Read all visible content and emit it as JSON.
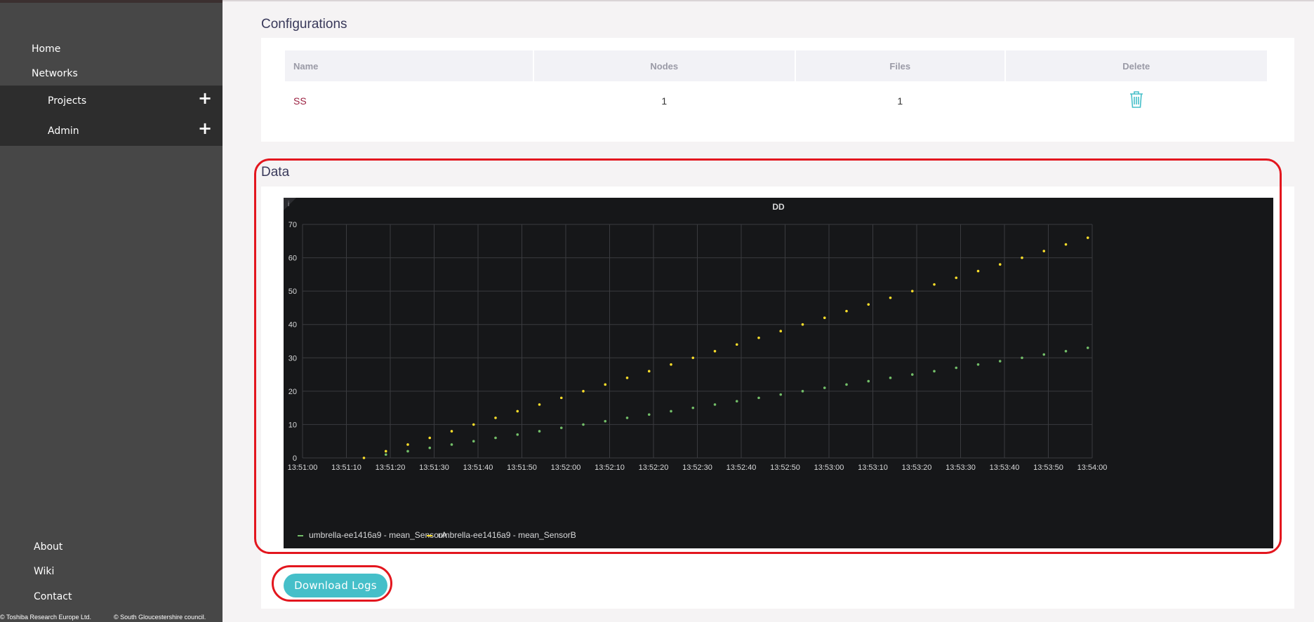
{
  "sidebar": {
    "top_links": [
      "Home",
      "Networks"
    ],
    "sub_items": [
      {
        "label": "Projects",
        "expand": "+"
      },
      {
        "label": "Admin",
        "expand": "+"
      }
    ],
    "bottom_links": [
      "About",
      "Wiki",
      "Contact"
    ],
    "footer": {
      "left": "© Toshiba Research Europe Ltd.",
      "right": "© South Gloucestershire council."
    }
  },
  "configurations": {
    "title": "Configurations",
    "columns": [
      "Name",
      "Nodes",
      "Files",
      "Delete"
    ],
    "rows": [
      {
        "name": "SS",
        "nodes": "1",
        "files": "1",
        "delete_icon": "trash-icon"
      }
    ]
  },
  "data_section": {
    "title": "Data",
    "info_glyph": "i"
  },
  "download_button": {
    "label": "Download Logs"
  },
  "colors": {
    "sidebar_bg": "#474747",
    "subnav_bg": "#2d2d2d",
    "accent": "#45bfc9",
    "highlight": "#e3161e",
    "series_a": "#73bf69",
    "series_b": "#fade2a"
  },
  "chart_data": {
    "type": "scatter",
    "title": "DD",
    "xlabel": "",
    "ylabel": "",
    "x_ticks": [
      "13:51:00",
      "13:51:10",
      "13:51:20",
      "13:51:30",
      "13:51:40",
      "13:51:50",
      "13:52:00",
      "13:52:10",
      "13:52:20",
      "13:52:30",
      "13:52:40",
      "13:52:50",
      "13:53:00",
      "13:53:10",
      "13:53:20",
      "13:53:30",
      "13:53:40",
      "13:53:50",
      "13:54:00"
    ],
    "xlim": [
      "13:51:00",
      "13:54:00"
    ],
    "y_ticks": [
      0,
      10,
      20,
      30,
      40,
      50,
      60,
      70
    ],
    "ylim": [
      0,
      70
    ],
    "grid": true,
    "legend_position": "bottom-left",
    "x": [
      "13:51:14",
      "13:51:19",
      "13:51:24",
      "13:51:29",
      "13:51:34",
      "13:51:39",
      "13:51:44",
      "13:51:49",
      "13:51:54",
      "13:51:59",
      "13:52:04",
      "13:52:09",
      "13:52:14",
      "13:52:19",
      "13:52:24",
      "13:52:29",
      "13:52:34",
      "13:52:39",
      "13:52:44",
      "13:52:49",
      "13:52:54",
      "13:52:59",
      "13:53:04",
      "13:53:09",
      "13:53:14",
      "13:53:19",
      "13:53:24",
      "13:53:29",
      "13:53:34",
      "13:53:39",
      "13:53:44",
      "13:53:49",
      "13:53:54",
      "13:53:59"
    ],
    "series": [
      {
        "name": "umbrella-ee1416a9 - mean_SensorA",
        "color": "#73bf69",
        "values": [
          null,
          1,
          2,
          3,
          4,
          5,
          6,
          7,
          8,
          9,
          10,
          11,
          12,
          13,
          14,
          15,
          16,
          17,
          18,
          19,
          20,
          21,
          22,
          23,
          24,
          25,
          26,
          27,
          28,
          29,
          30,
          31,
          32,
          33
        ]
      },
      {
        "name": "umbrella-ee1416a9 - mean_SensorB",
        "color": "#fade2a",
        "values": [
          0,
          2,
          4,
          6,
          8,
          10,
          12,
          14,
          16,
          18,
          20,
          22,
          24,
          26,
          28,
          30,
          32,
          34,
          36,
          38,
          40,
          42,
          44,
          46,
          48,
          50,
          52,
          54,
          56,
          58,
          60,
          62,
          64,
          66
        ]
      }
    ]
  }
}
